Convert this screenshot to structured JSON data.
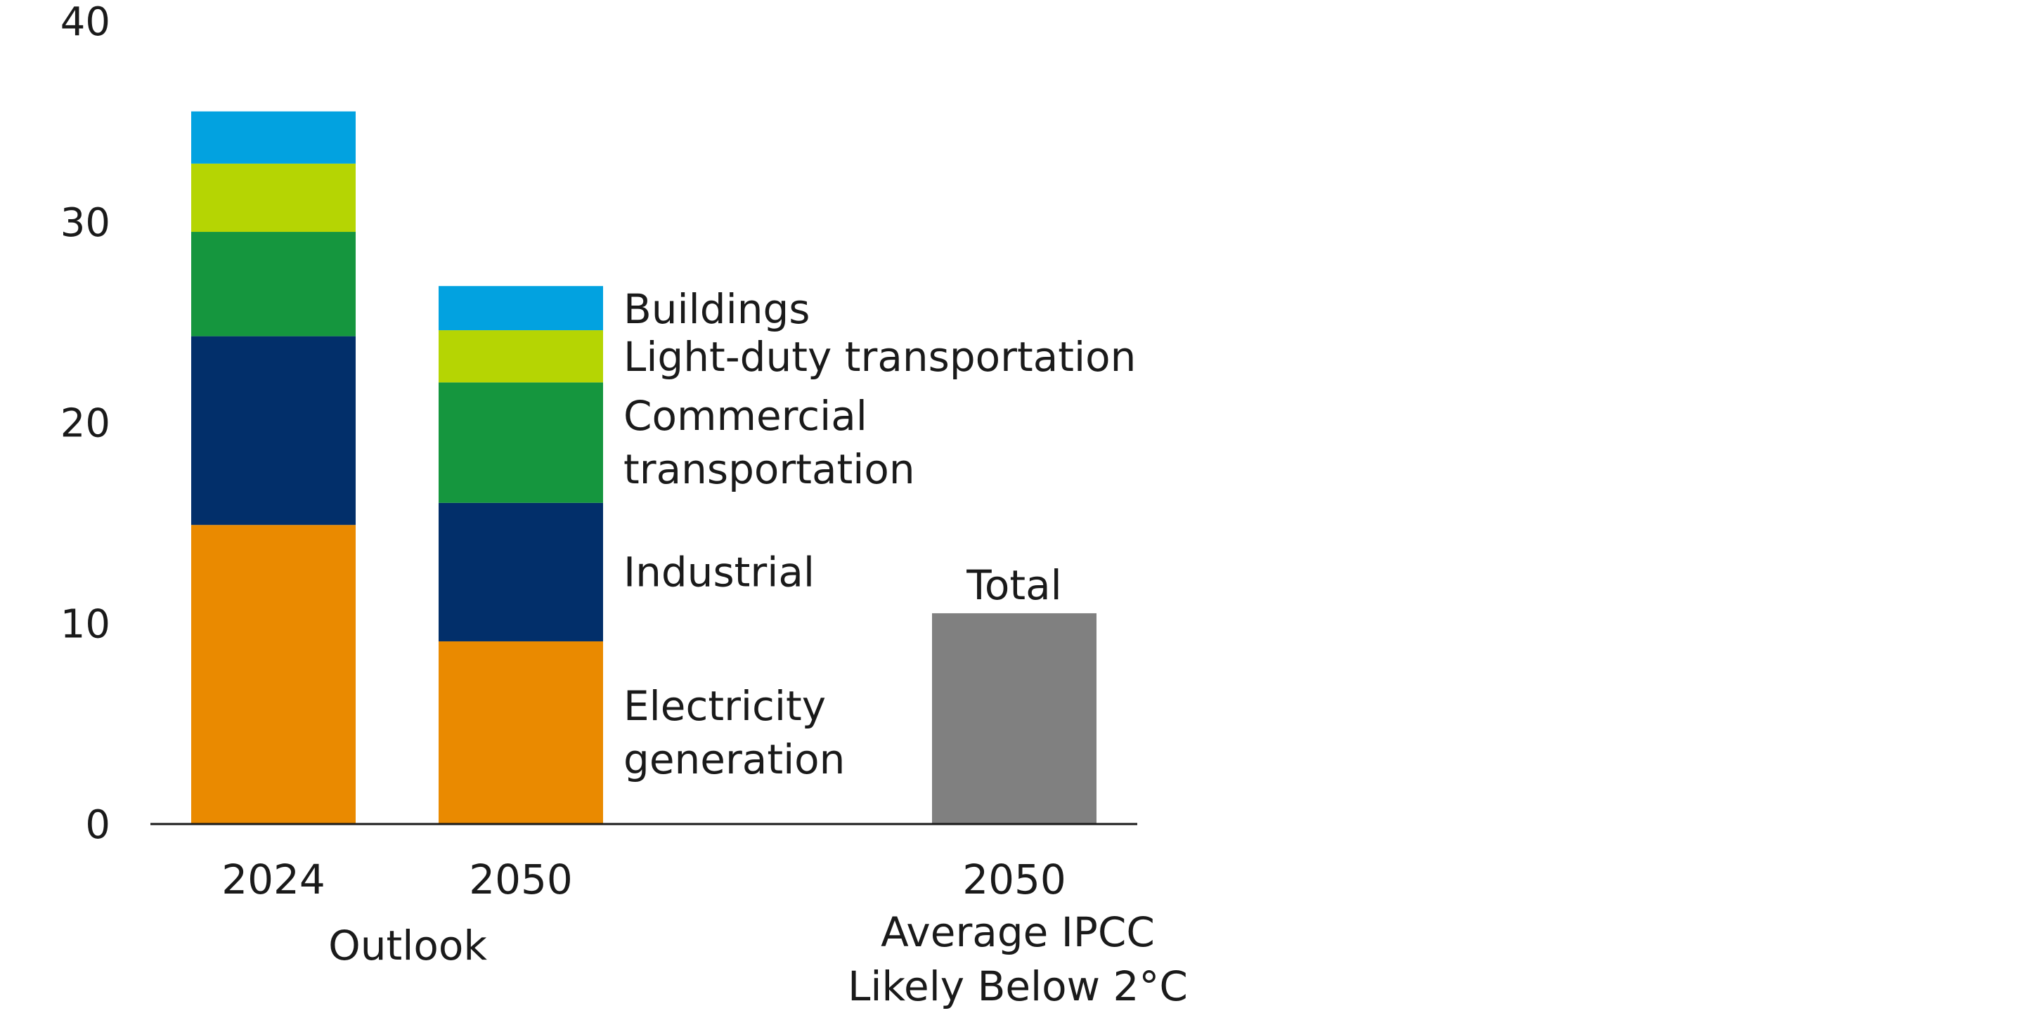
{
  "chart_data": {
    "type": "stacked-bar",
    "title": "",
    "xlabel": "",
    "ylabel": "",
    "ylim": [
      0,
      40
    ],
    "yticks": [
      "0",
      "10",
      "20",
      "30",
      "40"
    ],
    "grid": false,
    "legend": "inline-right-of-2050-bar",
    "categories": [
      {
        "label": "2024",
        "group": "Outlook"
      },
      {
        "label": "2050",
        "group": "Outlook"
      },
      {
        "label": "2050",
        "group": "Average IPCC Likely Below 2°C"
      }
    ],
    "group_labels": {
      "outlook": "Outlook",
      "ipcc_line1": "Average IPCC",
      "ipcc_line2": "Likely Below 2°C"
    },
    "series": [
      {
        "name": "Electricity generation",
        "label_lines": [
          "Electricity",
          "generation"
        ],
        "color": "#EA8A00",
        "values": [
          14.9,
          9.1,
          null
        ]
      },
      {
        "name": "Industrial",
        "label_lines": [
          "Industrial"
        ],
        "color": "#022F6A",
        "values": [
          9.4,
          6.9,
          null
        ]
      },
      {
        "name": "Commercial transportation",
        "label_lines": [
          "Commercial",
          "transportation"
        ],
        "color": "#15963E",
        "values": [
          5.2,
          6.0,
          null
        ]
      },
      {
        "name": "Light-duty transportation",
        "label_lines": [
          "Light-duty transportation"
        ],
        "color": "#B5D503",
        "values": [
          3.4,
          2.6,
          null
        ]
      },
      {
        "name": "Buildings",
        "label_lines": [
          "Buildings"
        ],
        "color": "#02A2E0",
        "values": [
          2.6,
          2.2,
          null
        ]
      },
      {
        "name": "Total",
        "label_lines": [
          "Total"
        ],
        "color": "#808080",
        "values": [
          null,
          null,
          10.5
        ]
      }
    ]
  }
}
